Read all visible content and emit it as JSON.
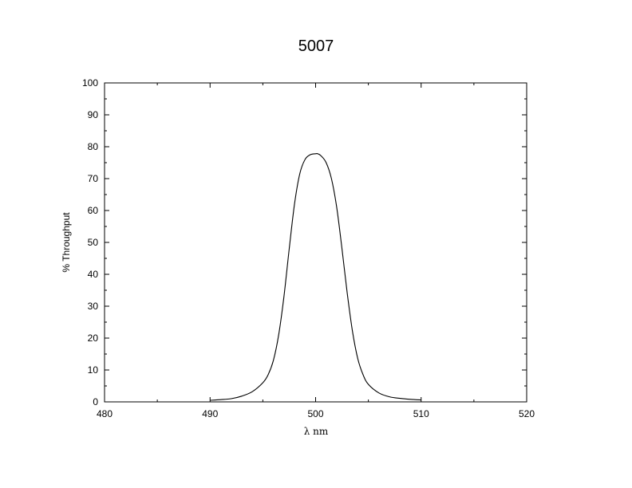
{
  "chart_data": {
    "type": "line",
    "title": "5007",
    "xlabel": "λ nm",
    "ylabel": "% Throughput",
    "xlim": [
      480,
      520
    ],
    "ylim": [
      0,
      100
    ],
    "x_ticks": [
      480,
      490,
      500,
      510,
      520
    ],
    "y_ticks": [
      0,
      10,
      20,
      30,
      40,
      50,
      60,
      70,
      80,
      90,
      100
    ],
    "grid": false,
    "series": [
      {
        "x": [
          490.0,
          491.0,
          492.0,
          493.0,
          494.0,
          495.0,
          495.5,
          496.0,
          496.5,
          497.0,
          497.5,
          498.0,
          498.5,
          499.0,
          499.5,
          500.0,
          500.2,
          500.5,
          501.0,
          501.5,
          502.0,
          502.5,
          503.0,
          503.5,
          504.0,
          504.5,
          505.0,
          506.0,
          507.0,
          508.0,
          509.0,
          510.0
        ],
        "y": [
          0.5,
          0.7,
          1.0,
          1.8,
          3.2,
          6.0,
          8.5,
          13.0,
          21.0,
          33.0,
          48.0,
          62.0,
          71.5,
          76.0,
          77.5,
          77.8,
          77.8,
          77.2,
          75.0,
          70.0,
          61.0,
          48.0,
          34.0,
          22.0,
          13.5,
          8.5,
          5.5,
          2.8,
          1.6,
          1.1,
          0.8,
          0.6
        ]
      }
    ]
  }
}
